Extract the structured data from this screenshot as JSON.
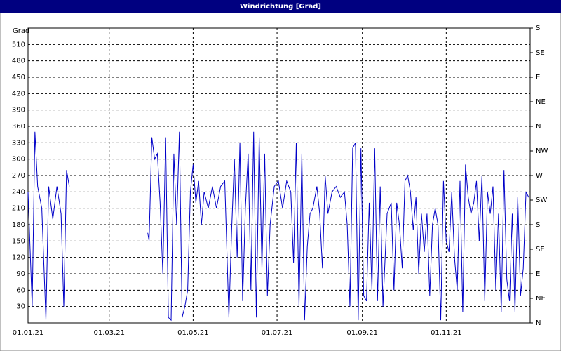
{
  "chart_data": {
    "type": "line",
    "title": "Windrichtung [Grad]",
    "y_label": "Grad",
    "x": [
      "2021-01-01",
      "2021-01-04",
      "2021-01-06",
      "2021-01-08",
      "2021-01-11",
      "2021-01-14",
      "2021-01-16",
      "2021-01-19",
      "2021-01-22",
      "2021-01-25",
      "2021-01-27",
      "2021-01-29",
      "2021-01-31",
      "2021-02-15",
      "2021-03-29",
      "2021-03-30",
      "2021-04-01",
      "2021-04-03",
      "2021-04-05",
      "2021-04-07",
      "2021-04-09",
      "2021-04-11",
      "2021-04-13",
      "2021-04-15",
      "2021-04-17",
      "2021-04-19",
      "2021-04-21",
      "2021-04-23",
      "2021-04-25",
      "2021-04-27",
      "2021-04-29",
      "2021-05-01",
      "2021-05-03",
      "2021-05-05",
      "2021-05-07",
      "2021-05-09",
      "2021-05-12",
      "2021-05-15",
      "2021-05-18",
      "2021-05-21",
      "2021-05-24",
      "2021-05-27",
      "2021-05-29",
      "2021-05-31",
      "2021-06-02",
      "2021-06-04",
      "2021-06-06",
      "2021-06-08",
      "2021-06-10",
      "2021-06-12",
      "2021-06-14",
      "2021-06-16",
      "2021-06-18",
      "2021-06-20",
      "2021-06-22",
      "2021-06-24",
      "2021-06-26",
      "2021-06-29",
      "2021-07-02",
      "2021-07-05",
      "2021-07-08",
      "2021-07-11",
      "2021-07-13",
      "2021-07-15",
      "2021-07-17",
      "2021-07-19",
      "2021-07-21",
      "2021-07-23",
      "2021-07-25",
      "2021-07-27",
      "2021-07-30",
      "2021-08-01",
      "2021-08-03",
      "2021-08-05",
      "2021-08-07",
      "2021-08-10",
      "2021-08-13",
      "2021-08-16",
      "2021-08-19",
      "2021-08-21",
      "2021-08-23",
      "2021-08-25",
      "2021-08-27",
      "2021-08-29",
      "2021-08-31",
      "2021-09-02",
      "2021-09-04",
      "2021-09-06",
      "2021-09-08",
      "2021-09-10",
      "2021-09-12",
      "2021-09-14",
      "2021-09-16",
      "2021-09-19",
      "2021-09-22",
      "2021-09-24",
      "2021-09-26",
      "2021-09-28",
      "2021-09-30",
      "2021-10-02",
      "2021-10-04",
      "2021-10-06",
      "2021-10-08",
      "2021-10-10",
      "2021-10-12",
      "2021-10-14",
      "2021-10-16",
      "2021-10-18",
      "2021-10-20",
      "2021-10-22",
      "2021-10-24",
      "2021-10-26",
      "2021-10-28",
      "2021-10-30",
      "2021-11-01",
      "2021-11-03",
      "2021-11-05",
      "2021-11-07",
      "2021-11-09",
      "2021-11-11",
      "2021-11-13",
      "2021-11-15",
      "2021-11-17",
      "2021-11-19",
      "2021-11-21",
      "2021-11-23",
      "2021-11-25",
      "2021-11-27",
      "2021-11-29",
      "2021-12-01",
      "2021-12-03",
      "2021-12-05",
      "2021-12-07",
      "2021-12-09",
      "2021-12-11",
      "2021-12-13",
      "2021-12-15",
      "2021-12-17",
      "2021-12-19",
      "2021-12-21",
      "2021-12-23",
      "2021-12-25",
      "2021-12-27",
      "2021-12-29",
      "2021-12-31"
    ],
    "series": [
      {
        "name": "Windrichtung",
        "color": "#0000c8",
        "values": [
          240,
          30,
          350,
          250,
          210,
          5,
          250,
          190,
          250,
          200,
          30,
          280,
          250,
          null,
          165,
          150,
          340,
          300,
          310,
          220,
          90,
          340,
          10,
          5,
          310,
          180,
          350,
          10,
          30,
          60,
          240,
          290,
          220,
          260,
          180,
          240,
          210,
          250,
          210,
          250,
          260,
          10,
          170,
          300,
          120,
          330,
          40,
          210,
          310,
          60,
          350,
          10,
          340,
          100,
          310,
          50,
          180,
          250,
          260,
          210,
          260,
          240,
          110,
          330,
          30,
          310,
          5,
          140,
          200,
          210,
          250,
          200,
          100,
          270,
          200,
          240,
          250,
          230,
          240,
          180,
          30,
          320,
          330,
          5,
          320,
          50,
          40,
          220,
          60,
          320,
          40,
          250,
          30,
          200,
          220,
          60,
          220,
          180,
          100,
          260,
          270,
          240,
          170,
          230,
          90,
          200,
          130,
          200,
          50,
          180,
          210,
          180,
          5,
          260,
          150,
          130,
          240,
          120,
          60,
          260,
          20,
          290,
          230,
          200,
          220,
          260,
          150,
          270,
          40,
          240,
          200,
          250,
          60,
          200,
          20,
          280,
          80,
          40,
          200,
          20,
          230,
          50,
          100,
          240,
          230
        ]
      }
    ],
    "xlim": [
      "2021-01-01",
      "2022-01-01"
    ],
    "xticks": [
      {
        "value": "2021-01-01",
        "label": "01.01.21"
      },
      {
        "value": "2021-03-01",
        "label": "01.03.21"
      },
      {
        "value": "2021-05-01",
        "label": "01.05.21"
      },
      {
        "value": "2021-07-01",
        "label": "01.07.21"
      },
      {
        "value": "2021-09-01",
        "label": "01.09.21"
      },
      {
        "value": "2021-11-01",
        "label": "01.11.21"
      }
    ],
    "ylim": [
      0,
      540
    ],
    "yticks": [
      30,
      60,
      90,
      120,
      150,
      180,
      210,
      240,
      270,
      300,
      330,
      360,
      390,
      420,
      450,
      480,
      510
    ],
    "y2lim": [
      0,
      540
    ],
    "y2ticks": [
      {
        "value": 0,
        "label": "N"
      },
      {
        "value": 45,
        "label": "NE"
      },
      {
        "value": 90,
        "label": "E"
      },
      {
        "value": 135,
        "label": "SE"
      },
      {
        "value": 180,
        "label": "S"
      },
      {
        "value": 225,
        "label": "SW"
      },
      {
        "value": 270,
        "label": "W"
      },
      {
        "value": 315,
        "label": "NW"
      },
      {
        "value": 360,
        "label": "N"
      },
      {
        "value": 405,
        "label": "NE"
      },
      {
        "value": 450,
        "label": "E"
      },
      {
        "value": 495,
        "label": "SE"
      },
      {
        "value": 540,
        "label": "S"
      }
    ],
    "grid": true
  }
}
